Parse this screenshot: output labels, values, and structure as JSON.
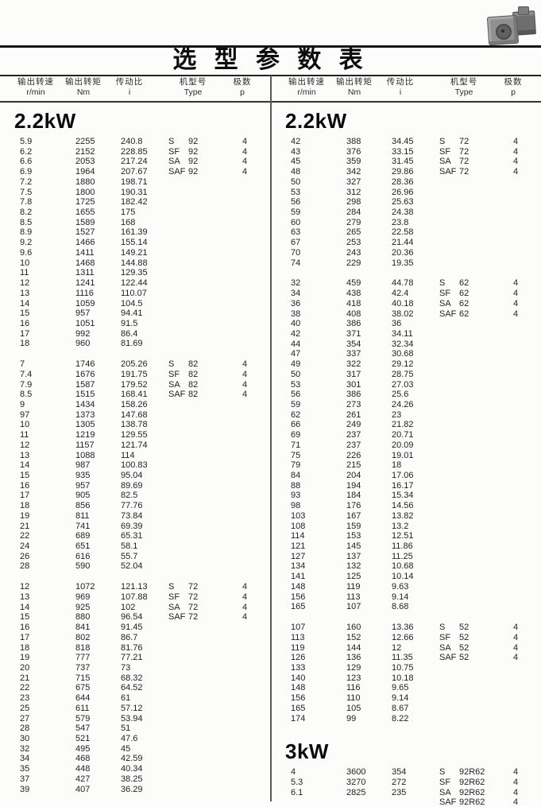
{
  "page": {
    "title": "选 型 参 数 表"
  },
  "table_header": {
    "columns": [
      {
        "label": "输出转速",
        "unit": "r/min"
      },
      {
        "label": "输出转矩",
        "unit": "Nm"
      },
      {
        "label": "传动比",
        "unit": "i"
      },
      {
        "label": "机型号",
        "unit": "Type"
      },
      {
        "label": "极数",
        "unit": "p"
      }
    ]
  },
  "left": {
    "sections": [
      {
        "heading": "2.2kW",
        "blocks": [
          [
            [
              "5.9",
              "2255",
              "240.8",
              "S",
              "92",
              "4"
            ],
            [
              "6.2",
              "2152",
              "228.85",
              "SF",
              "92",
              "4"
            ],
            [
              "6.6",
              "2053",
              "217.24",
              "SA",
              "92",
              "4"
            ],
            [
              "6.9",
              "1964",
              "207.67",
              "SAF",
              "92",
              "4"
            ],
            [
              "7.2",
              "1880",
              "198.71",
              "",
              "",
              ""
            ],
            [
              "7.5",
              "1800",
              "190.31",
              "",
              "",
              ""
            ],
            [
              "7.8",
              "1725",
              "182.42",
              "",
              "",
              ""
            ],
            [
              "8.2",
              "1655",
              "175",
              "",
              "",
              ""
            ],
            [
              "8.5",
              "1589",
              "168",
              "",
              "",
              ""
            ],
            [
              "8.9",
              "1527",
              "161.39",
              "",
              "",
              ""
            ],
            [
              "9.2",
              "1466",
              "155.14",
              "",
              "",
              ""
            ],
            [
              "9.6",
              "1411",
              "149.21",
              "",
              "",
              ""
            ],
            [
              "10",
              "1468",
              "144.88",
              "",
              "",
              ""
            ],
            [
              "11",
              "1311",
              "129.35",
              "",
              "",
              ""
            ],
            [
              "12",
              "1241",
              "122.44",
              "",
              "",
              ""
            ],
            [
              "13",
              "1116",
              "110.07",
              "",
              "",
              ""
            ],
            [
              "14",
              "1059",
              "104.5",
              "",
              "",
              ""
            ],
            [
              "15",
              "957",
              "94.41",
              "",
              "",
              ""
            ],
            [
              "16",
              "1051",
              "91.5",
              "",
              "",
              ""
            ],
            [
              "17",
              "992",
              "86.4",
              "",
              "",
              ""
            ],
            [
              "18",
              "960",
              "81.69",
              "",
              "",
              ""
            ]
          ],
          [
            [
              "7",
              "1746",
              "205.26",
              "S",
              "82",
              "4"
            ],
            [
              "7.4",
              "1676",
              "191.75",
              "SF",
              "82",
              "4"
            ],
            [
              "7.9",
              "1587",
              "179.52",
              "SA",
              "82",
              "4"
            ],
            [
              "8.5",
              "1515",
              "168.41",
              "SAF",
              "82",
              "4"
            ],
            [
              "9",
              "1434",
              "158.26",
              "",
              "",
              ""
            ],
            [
              "97",
              "1373",
              "147.68",
              "",
              "",
              ""
            ],
            [
              "10",
              "1305",
              "138.78",
              "",
              "",
              ""
            ],
            [
              "11",
              "1219",
              "129.55",
              "",
              "",
              ""
            ],
            [
              "12",
              "1157",
              "121.74",
              "",
              "",
              ""
            ],
            [
              "13",
              "1088",
              "114",
              "",
              "",
              ""
            ],
            [
              "14",
              "987",
              "100.83",
              "",
              "",
              ""
            ],
            [
              "15",
              "935",
              "95.04",
              "",
              "",
              ""
            ],
            [
              "16",
              "957",
              "89.69",
              "",
              "",
              ""
            ],
            [
              "17",
              "905",
              "82.5",
              "",
              "",
              ""
            ],
            [
              "18",
              "856",
              "77.76",
              "",
              "",
              ""
            ],
            [
              "19",
              "811",
              "73.84",
              "",
              "",
              ""
            ],
            [
              "21",
              "741",
              "69.39",
              "",
              "",
              ""
            ],
            [
              "22",
              "689",
              "65.31",
              "",
              "",
              ""
            ],
            [
              "24",
              "651",
              "58.1",
              "",
              "",
              ""
            ],
            [
              "26",
              "616",
              "55.7",
              "",
              "",
              ""
            ],
            [
              "28",
              "590",
              "52.04",
              "",
              "",
              ""
            ]
          ],
          [
            [
              "12",
              "1072",
              "121.13",
              "S",
              "72",
              "4"
            ],
            [
              "13",
              "969",
              "107.88",
              "SF",
              "72",
              "4"
            ],
            [
              "14",
              "925",
              "102",
              "SA",
              "72",
              "4"
            ],
            [
              "15",
              "880",
              "96.54",
              "SAF",
              "72",
              "4"
            ],
            [
              "16",
              "841",
              "91.45",
              "",
              "",
              ""
            ],
            [
              "17",
              "802",
              "86.7",
              "",
              "",
              ""
            ],
            [
              "18",
              "818",
              "81.76",
              "",
              "",
              ""
            ],
            [
              "19",
              "777",
              "77.21",
              "",
              "",
              ""
            ],
            [
              "20",
              "737",
              "73",
              "",
              "",
              ""
            ],
            [
              "21",
              "715",
              "68.32",
              "",
              "",
              ""
            ],
            [
              "22",
              "675",
              "64.52",
              "",
              "",
              ""
            ],
            [
              "23",
              "644",
              "61",
              "",
              "",
              ""
            ],
            [
              "25",
              "611",
              "57.12",
              "",
              "",
              ""
            ],
            [
              "27",
              "579",
              "53.94",
              "",
              "",
              ""
            ],
            [
              "28",
              "547",
              "51",
              "",
              "",
              ""
            ],
            [
              "30",
              "521",
              "47.6",
              "",
              "",
              ""
            ],
            [
              "32",
              "495",
              "45",
              "",
              "",
              ""
            ],
            [
              "34",
              "468",
              "42.59",
              "",
              "",
              ""
            ],
            [
              "35",
              "448",
              "40.34",
              "",
              "",
              ""
            ],
            [
              "37",
              "427",
              "38.25",
              "",
              "",
              ""
            ],
            [
              "39",
              "407",
              "36.29",
              "",
              "",
              ""
            ]
          ]
        ]
      }
    ]
  },
  "right": {
    "sections": [
      {
        "heading": "2.2kW",
        "blocks": [
          [
            [
              "42",
              "388",
              "34.45",
              "S",
              "72",
              "4"
            ],
            [
              "43",
              "376",
              "33.15",
              "SF",
              "72",
              "4"
            ],
            [
              "45",
              "359",
              "31.45",
              "SA",
              "72",
              "4"
            ],
            [
              "48",
              "342",
              "29.86",
              "SAF",
              "72",
              "4"
            ],
            [
              "50",
              "327",
              "28.36",
              "",
              "",
              ""
            ],
            [
              "53",
              "312",
              "26.96",
              "",
              "",
              ""
            ],
            [
              "56",
              "298",
              "25.63",
              "",
              "",
              ""
            ],
            [
              "59",
              "284",
              "24.38",
              "",
              "",
              ""
            ],
            [
              "60",
              "279",
              "23.8",
              "",
              "",
              ""
            ],
            [
              "63",
              "265",
              "22.58",
              "",
              "",
              ""
            ],
            [
              "67",
              "253",
              "21.44",
              "",
              "",
              ""
            ],
            [
              "70",
              "243",
              "20.36",
              "",
              "",
              ""
            ],
            [
              "74",
              "229",
              "19.35",
              "",
              "",
              ""
            ]
          ],
          [
            [
              "32",
              "459",
              "44.78",
              "S",
              "62",
              "4"
            ],
            [
              "34",
              "438",
              "42.4",
              "SF",
              "62",
              "4"
            ],
            [
              "36",
              "418",
              "40.18",
              "SA",
              "62",
              "4"
            ],
            [
              "38",
              "408",
              "38.02",
              "SAF",
              "62",
              "4"
            ],
            [
              "40",
              "386",
              "36",
              "",
              "",
              ""
            ],
            [
              "42",
              "371",
              "34.11",
              "",
              "",
              ""
            ],
            [
              "44",
              "354",
              "32.34",
              "",
              "",
              ""
            ],
            [
              "47",
              "337",
              "30.68",
              "",
              "",
              ""
            ],
            [
              "49",
              "322",
              "29.12",
              "",
              "",
              ""
            ],
            [
              "50",
              "317",
              "28.75",
              "",
              "",
              ""
            ],
            [
              "53",
              "301",
              "27.03",
              "",
              "",
              ""
            ],
            [
              "56",
              "386",
              "25.6",
              "",
              "",
              ""
            ],
            [
              "59",
              "273",
              "24.26",
              "",
              "",
              ""
            ],
            [
              "62",
              "261",
              "23",
              "",
              "",
              ""
            ],
            [
              "66",
              "249",
              "21.82",
              "",
              "",
              ""
            ],
            [
              "69",
              "237",
              "20.71",
              "",
              "",
              ""
            ],
            [
              "71",
              "237",
              "20.09",
              "",
              "",
              ""
            ],
            [
              "75",
              "226",
              "19.01",
              "",
              "",
              ""
            ],
            [
              "79",
              "215",
              "18",
              "",
              "",
              ""
            ],
            [
              "84",
              "204",
              "17.06",
              "",
              "",
              ""
            ],
            [
              "88",
              "194",
              "16.17",
              "",
              "",
              ""
            ],
            [
              "93",
              "184",
              "15.34",
              "",
              "",
              ""
            ],
            [
              "98",
              "176",
              "14.56",
              "",
              "",
              ""
            ],
            [
              "103",
              "167",
              "13.82",
              "",
              "",
              ""
            ],
            [
              "108",
              "159",
              "13.2",
              "",
              "",
              ""
            ],
            [
              "114",
              "153",
              "12.51",
              "",
              "",
              ""
            ],
            [
              "121",
              "145",
              "11.86",
              "",
              "",
              ""
            ],
            [
              "127",
              "137",
              "11.25",
              "",
              "",
              ""
            ],
            [
              "134",
              "132",
              "10.68",
              "",
              "",
              ""
            ],
            [
              "141",
              "125",
              "10.14",
              "",
              "",
              ""
            ],
            [
              "148",
              "119",
              "9.63",
              "",
              "",
              ""
            ],
            [
              "156",
              "113",
              "9.14",
              "",
              "",
              ""
            ],
            [
              "165",
              "107",
              "8.68",
              "",
              "",
              ""
            ]
          ],
          [
            [
              "107",
              "160",
              "13.36",
              "S",
              "52",
              "4"
            ],
            [
              "113",
              "152",
              "12.66",
              "SF",
              "52",
              "4"
            ],
            [
              "119",
              "144",
              "12",
              "SA",
              "52",
              "4"
            ],
            [
              "126",
              "136",
              "11.35",
              "SAF",
              "52",
              "4"
            ],
            [
              "133",
              "129",
              "10.75",
              "",
              "",
              ""
            ],
            [
              "140",
              "123",
              "10.18",
              "",
              "",
              ""
            ],
            [
              "148",
              "116",
              "9.65",
              "",
              "",
              ""
            ],
            [
              "156",
              "110",
              "9.14",
              "",
              "",
              ""
            ],
            [
              "165",
              "105",
              "8.67",
              "",
              "",
              ""
            ],
            [
              "174",
              "99",
              "8.22",
              "",
              "",
              ""
            ]
          ]
        ]
      },
      {
        "heading": "3kW",
        "blocks": [
          [
            [
              "4",
              "3600",
              "354",
              "S",
              "92R62",
              "4"
            ],
            [
              "5.3",
              "3270",
              "272",
              "SF",
              "92R62",
              "4"
            ],
            [
              "6.1",
              "2825",
              "235",
              "SA",
              "92R62",
              "4"
            ],
            [
              "",
              "",
              "",
              "SAF",
              "92R62",
              "4"
            ]
          ]
        ]
      }
    ]
  }
}
